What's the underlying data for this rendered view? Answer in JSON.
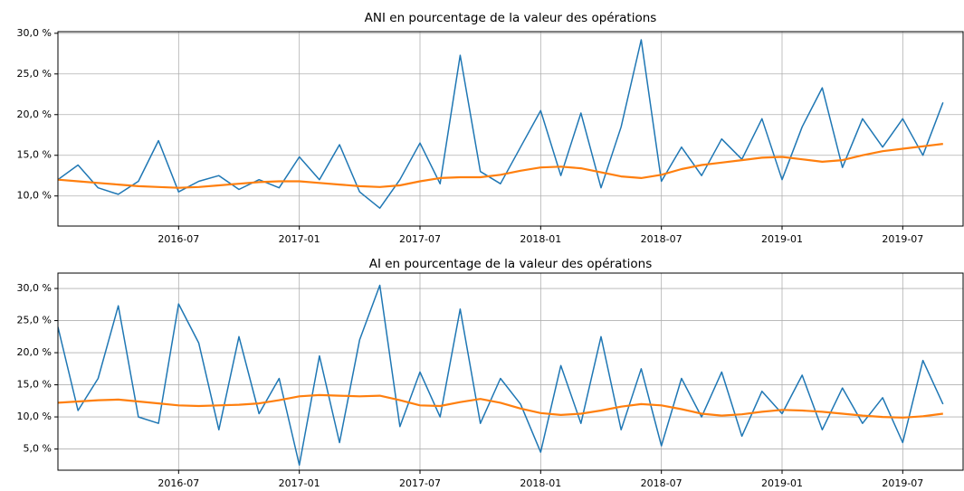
{
  "chart_data": [
    {
      "type": "line",
      "title": "ANI en pourcentage de la valeur des opérations",
      "x": [
        "2016-01",
        "2016-02",
        "2016-03",
        "2016-04",
        "2016-05",
        "2016-06",
        "2016-07",
        "2016-08",
        "2016-09",
        "2016-10",
        "2016-11",
        "2016-12",
        "2017-01",
        "2017-02",
        "2017-03",
        "2017-04",
        "2017-05",
        "2017-06",
        "2017-07",
        "2017-08",
        "2017-09",
        "2017-10",
        "2017-11",
        "2017-12",
        "2018-01",
        "2018-02",
        "2018-03",
        "2018-04",
        "2018-05",
        "2018-06",
        "2018-07",
        "2018-08",
        "2018-09",
        "2018-10",
        "2018-11",
        "2018-12",
        "2019-01",
        "2019-02",
        "2019-03",
        "2019-04",
        "2019-05",
        "2019-06",
        "2019-07",
        "2019-08",
        "2019-09"
      ],
      "series": [
        {
          "color": "#1f77b4",
          "values": [
            12,
            13.8,
            11,
            10.2,
            11.8,
            16.8,
            10.5,
            11.8,
            12.5,
            10.8,
            12,
            11,
            14.8,
            12,
            16.3,
            10.5,
            8.5,
            12,
            16.5,
            11.5,
            27.3,
            13,
            11.5,
            16,
            20.5,
            12.5,
            20.2,
            11,
            18.5,
            29.2,
            11.8,
            16,
            12.5,
            17,
            14.5,
            19.5,
            12,
            18.5,
            23.3,
            13.5,
            19.5,
            16,
            19.5,
            15,
            21.5
          ]
        },
        {
          "color": "#ff7f0e",
          "values": [
            12,
            11.8,
            11.6,
            11.4,
            11.2,
            11.1,
            11,
            11.1,
            11.3,
            11.5,
            11.7,
            11.8,
            11.8,
            11.6,
            11.4,
            11.2,
            11.1,
            11.3,
            11.8,
            12.2,
            12.3,
            12.3,
            12.6,
            13.1,
            13.5,
            13.6,
            13.4,
            12.9,
            12.4,
            12.2,
            12.6,
            13.3,
            13.8,
            14.1,
            14.4,
            14.7,
            14.8,
            14.5,
            14.2,
            14.4,
            15,
            15.5,
            15.8,
            16.1,
            16.4
          ]
        }
      ],
      "xlim": [
        "2016-01",
        "2019-10"
      ],
      "xticks": [
        "2016-07",
        "2017-01",
        "2017-07",
        "2018-01",
        "2018-07",
        "2019-01",
        "2019-07"
      ],
      "ylim": [
        6.3,
        30.2
      ],
      "yticks": [
        {
          "value": 10,
          "label": "10,0 %"
        },
        {
          "value": 15,
          "label": "15,0 %"
        },
        {
          "value": 20,
          "label": "20,0 %"
        },
        {
          "value": 25,
          "label": "25,0 %"
        },
        {
          "value": 30,
          "label": "30,0 %"
        }
      ],
      "grid": true
    },
    {
      "type": "line",
      "title": "AI en pourcentage de la valeur des opérations",
      "x": [
        "2016-01",
        "2016-02",
        "2016-03",
        "2016-04",
        "2016-05",
        "2016-06",
        "2016-07",
        "2016-08",
        "2016-09",
        "2016-10",
        "2016-11",
        "2016-12",
        "2017-01",
        "2017-02",
        "2017-03",
        "2017-04",
        "2017-05",
        "2017-06",
        "2017-07",
        "2017-08",
        "2017-09",
        "2017-10",
        "2017-11",
        "2017-12",
        "2018-01",
        "2018-02",
        "2018-03",
        "2018-04",
        "2018-05",
        "2018-06",
        "2018-07",
        "2018-08",
        "2018-09",
        "2018-10",
        "2018-11",
        "2018-12",
        "2019-01",
        "2019-02",
        "2019-03",
        "2019-04",
        "2019-05",
        "2019-06",
        "2019-07",
        "2019-08",
        "2019-09"
      ],
      "series": [
        {
          "color": "#1f77b4",
          "values": [
            24,
            11,
            16,
            27.3,
            10,
            9,
            27.6,
            21.5,
            8,
            22.5,
            10.5,
            16,
            2.5,
            19.5,
            6,
            22,
            30.5,
            8.5,
            17,
            10,
            26.8,
            9,
            16,
            12,
            4.5,
            18,
            9,
            22.5,
            8,
            17.5,
            5.5,
            16,
            10,
            17,
            7,
            14,
            10.5,
            16.5,
            8,
            14.5,
            9,
            13,
            6,
            18.8,
            12
          ]
        },
        {
          "color": "#ff7f0e",
          "values": [
            12.2,
            12.4,
            12.6,
            12.7,
            12.4,
            12.1,
            11.8,
            11.7,
            11.8,
            11.9,
            12.1,
            12.6,
            13.2,
            13.4,
            13.3,
            13.2,
            13.3,
            12.6,
            11.8,
            11.7,
            12.3,
            12.8,
            12.2,
            11.3,
            10.6,
            10.3,
            10.5,
            11,
            11.6,
            12,
            11.8,
            11.2,
            10.5,
            10.2,
            10.4,
            10.8,
            11.1,
            11,
            10.8,
            10.5,
            10.2,
            10,
            9.9,
            10.1,
            10.5
          ]
        }
      ],
      "xlim": [
        "2016-01",
        "2019-10"
      ],
      "xticks": [
        "2016-07",
        "2017-01",
        "2017-07",
        "2018-01",
        "2018-07",
        "2019-01",
        "2019-07"
      ],
      "ylim": [
        1.7,
        32.4
      ],
      "yticks": [
        {
          "value": 5,
          "label": "5,0 %"
        },
        {
          "value": 10,
          "label": "10,0 %"
        },
        {
          "value": 15,
          "label": "15,0 %"
        },
        {
          "value": 20,
          "label": "20,0 %"
        },
        {
          "value": 25,
          "label": "25,0 %"
        },
        {
          "value": 30,
          "label": "30,0 %"
        }
      ],
      "grid": true
    }
  ]
}
